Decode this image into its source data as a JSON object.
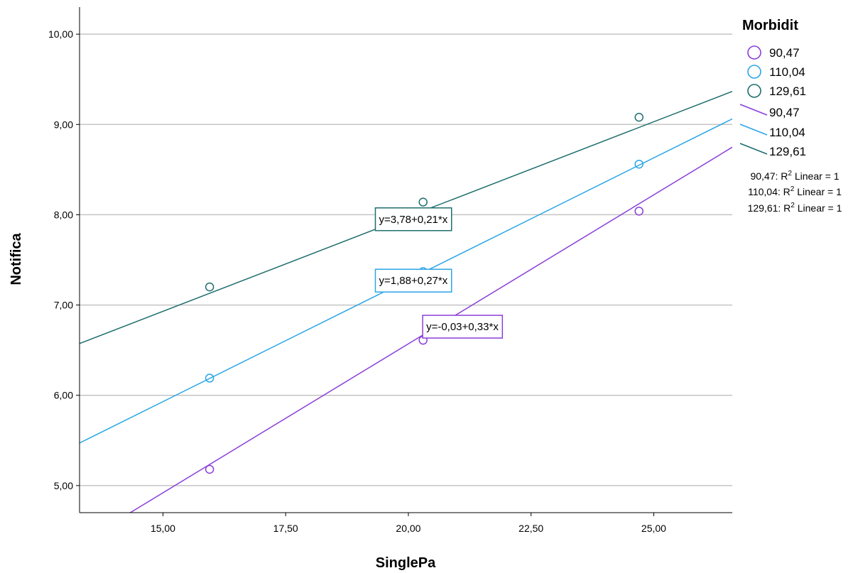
{
  "chart_data": {
    "type": "scatter",
    "xlabel": "SinglePa",
    "ylabel": "Notifica",
    "xlim": [
      13.3,
      26.6
    ],
    "ylim": [
      4.7,
      10.3
    ],
    "x_ticks": [
      15,
      17.5,
      20,
      22.5,
      25
    ],
    "x_tick_labels": [
      "15,00",
      "17,50",
      "20,00",
      "22,50",
      "25,00"
    ],
    "y_ticks": [
      5,
      6,
      7,
      8,
      9,
      10
    ],
    "y_tick_labels": [
      "5,00",
      "6,00",
      "7,00",
      "8,00",
      "9,00",
      "10,00"
    ],
    "grid": "horizontal",
    "legend": {
      "title": "Morbidit",
      "position": "right",
      "marker_entries": [
        "90,47",
        "110,04",
        "129,61"
      ],
      "line_entries": [
        "90,47",
        "110,04",
        "129,61"
      ],
      "r2_entries": [
        {
          "prefix": "90,47: R",
          "sup": "2",
          "suffix": " Linear = 1"
        },
        {
          "prefix": "110,04: R",
          "sup": "2",
          "suffix": " Linear = 1"
        },
        {
          "prefix": "129,61: R",
          "sup": "2",
          "suffix": " Linear = 1"
        }
      ]
    },
    "series": [
      {
        "name": "90,47",
        "color": "#8b3fd9",
        "points": [
          [
            15.95,
            5.18
          ],
          [
            20.3,
            6.61
          ],
          [
            24.7,
            8.04
          ]
        ],
        "fit": {
          "intercept": -0.03,
          "slope": 0.33,
          "equation": "y=-0,03+0,33*x",
          "label_at": [
            21.1,
            6.76
          ]
        }
      },
      {
        "name": "110,04",
        "color": "#2da6e6",
        "points": [
          [
            15.95,
            6.19
          ],
          [
            20.3,
            7.37
          ],
          [
            24.7,
            8.56
          ]
        ],
        "fit": {
          "intercept": 1.88,
          "slope": 0.27,
          "equation": "y=1,88+0,27*x",
          "label_at": [
            20.1,
            7.27
          ]
        }
      },
      {
        "name": "129,61",
        "color": "#1f6e6e",
        "points": [
          [
            15.95,
            7.2
          ],
          [
            20.3,
            8.14
          ],
          [
            24.7,
            9.08
          ]
        ],
        "fit": {
          "intercept": 3.78,
          "slope": 0.21,
          "equation": "y=3,78+0,21*x",
          "label_at": [
            20.1,
            7.95
          ]
        }
      }
    ]
  }
}
